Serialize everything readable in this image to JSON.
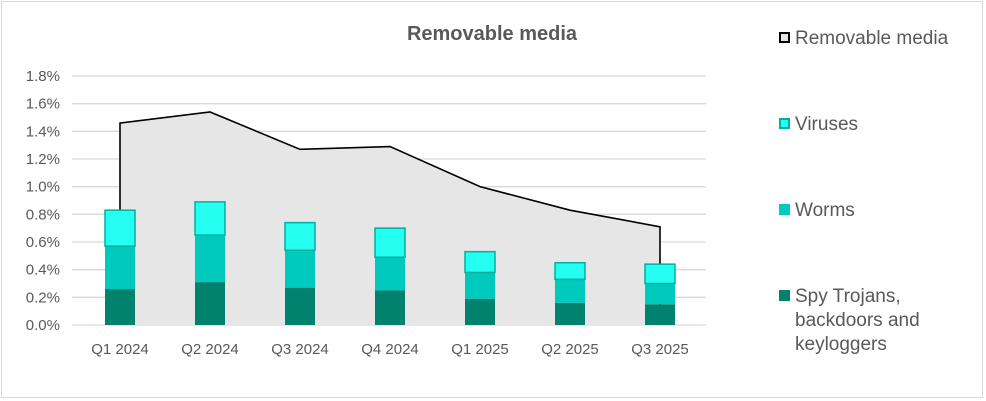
{
  "chart_data": {
    "type": "bar",
    "title": "Removable media",
    "categories": [
      "Q1 2024",
      "Q2 2024",
      "Q3 2024",
      "Q4 2024",
      "Q1 2025",
      "Q2 2025",
      "Q3 2025"
    ],
    "ylim": [
      0,
      1.8
    ],
    "yticks": [
      "0.0%",
      "0.2%",
      "0.4%",
      "0.6%",
      "0.8%",
      "1.0%",
      "1.2%",
      "1.4%",
      "1.6%",
      "1.8%"
    ],
    "grid": true,
    "legend_position": "right",
    "series": [
      {
        "name": "Removable media",
        "kind": "area",
        "values": [
          1.46,
          1.54,
          1.27,
          1.29,
          1.0,
          0.83,
          0.71
        ],
        "color": "#E6E6E6",
        "stroke": "#000000"
      },
      {
        "name": "Viruses",
        "kind": "stacked-bar",
        "values": [
          0.26,
          0.24,
          0.2,
          0.21,
          0.15,
          0.12,
          0.14
        ],
        "color": "#24FFF2",
        "stroke": "#00B0A0"
      },
      {
        "name": "Worms",
        "kind": "stacked-bar",
        "values": [
          0.31,
          0.34,
          0.27,
          0.24,
          0.19,
          0.17,
          0.15
        ],
        "color": "#00C9BD"
      },
      {
        "name": "Spy Trojans, backdoors and keyloggers",
        "kind": "stacked-bar",
        "values": [
          0.26,
          0.31,
          0.27,
          0.25,
          0.19,
          0.16,
          0.15
        ],
        "color": "#00826E"
      }
    ]
  }
}
